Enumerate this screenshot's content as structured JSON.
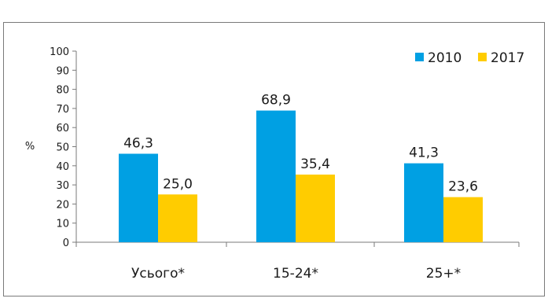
{
  "chart_data": {
    "type": "bar",
    "title": "",
    "ylabel": "%",
    "xlabel": "",
    "ylim": [
      0,
      100
    ],
    "yticks": [
      0,
      10,
      20,
      30,
      40,
      50,
      60,
      70,
      80,
      90,
      100
    ],
    "categories": [
      "Усього*",
      "15-24*",
      "25+*"
    ],
    "series": [
      {
        "name": "2010",
        "color": "#00a0e3",
        "values": [
          46.3,
          68.9,
          41.3
        ],
        "labels": [
          "46,3",
          "68,9",
          "41,3"
        ]
      },
      {
        "name": "2017",
        "color": "#ffcc00",
        "values": [
          25.0,
          35.4,
          23.6
        ],
        "labels": [
          "25,0",
          "35,4",
          "23,6"
        ]
      }
    ],
    "legend_position": "top-right",
    "grid": false
  }
}
